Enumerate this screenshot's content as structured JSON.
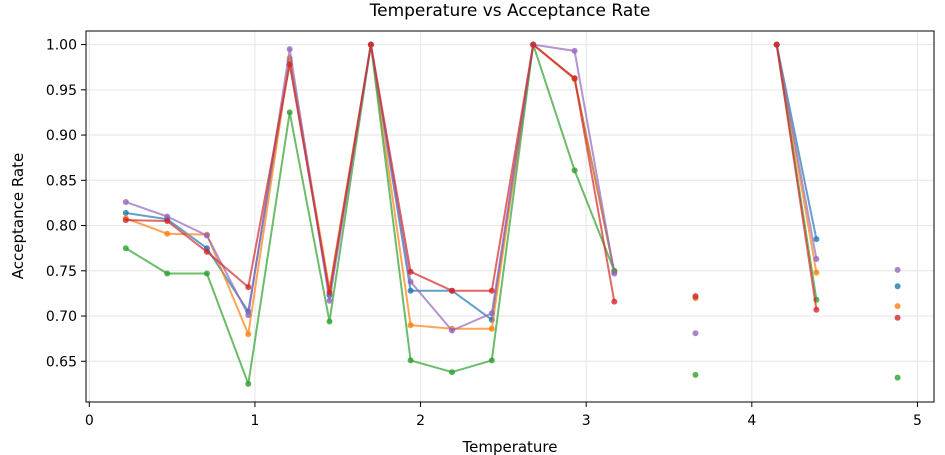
{
  "chart_data": {
    "type": "line",
    "title": "Temperature vs Acceptance Rate",
    "xlabel": "Temperature",
    "ylabel": "Acceptance Rate",
    "xlim": [
      -0.02,
      5.1
    ],
    "ylim": [
      0.605,
      1.015
    ],
    "grid": true,
    "xticks": [
      0,
      1,
      2,
      3,
      4,
      5
    ],
    "yticks": [
      0.65,
      0.7,
      0.75,
      0.8,
      0.85,
      0.9,
      0.95,
      1.0
    ],
    "xtick_labels": [
      "0",
      "1",
      "2",
      "3",
      "4",
      "5"
    ],
    "ytick_labels": [
      "0.65",
      "0.70",
      "0.75",
      "0.80",
      "0.85",
      "0.90",
      "0.95",
      "1.00"
    ],
    "series": [
      {
        "color": "#1f77b4",
        "x": [
          0.22,
          0.47,
          0.71,
          0.96,
          1.21,
          1.45,
          1.7,
          1.94,
          2.19,
          2.43,
          2.68,
          2.93,
          3.17,
          3.66,
          4.15,
          4.39,
          4.88
        ],
        "y": [
          0.814,
          0.807,
          0.775,
          0.705,
          0.982,
          0.723,
          1.0,
          0.728,
          0.728,
          0.696,
          1.0,
          0.962,
          0.749,
          0.72,
          1.0,
          0.785,
          0.733
        ]
      },
      {
        "color": "#ff7f0e",
        "x": [
          0.22,
          0.47,
          0.71,
          0.96,
          1.21,
          1.45,
          1.7,
          1.94,
          2.19,
          2.43,
          2.68,
          2.93,
          3.17,
          3.66,
          4.15,
          4.39,
          4.88
        ],
        "y": [
          0.808,
          0.791,
          0.79,
          0.68,
          0.985,
          0.73,
          1.0,
          0.69,
          0.686,
          0.686,
          1.0,
          0.962,
          0.749,
          0.72,
          1.0,
          0.748,
          0.711
        ]
      },
      {
        "color": "#2ca02c",
        "x": [
          0.22,
          0.47,
          0.71,
          0.96,
          1.21,
          1.45,
          1.7,
          1.94,
          2.19,
          2.43,
          2.68,
          2.93,
          3.17,
          3.66,
          4.15,
          4.39,
          4.88
        ],
        "y": [
          0.775,
          0.747,
          0.747,
          0.625,
          0.925,
          0.694,
          1.0,
          0.651,
          0.638,
          0.651,
          1.0,
          0.861,
          0.75,
          0.635,
          1.0,
          0.718,
          0.632
        ]
      },
      {
        "color": "#9467bd",
        "x": [
          0.22,
          0.47,
          0.71,
          0.96,
          1.21,
          1.45,
          1.7,
          1.94,
          2.19,
          2.43,
          2.68,
          2.93,
          3.17,
          3.66,
          4.15,
          4.39,
          4.88
        ],
        "y": [
          0.826,
          0.81,
          0.789,
          0.701,
          0.995,
          0.717,
          1.0,
          0.738,
          0.684,
          0.703,
          1.0,
          0.993,
          0.747,
          0.681,
          1.0,
          0.763,
          0.751
        ]
      },
      {
        "color": "#d62728",
        "x": [
          0.22,
          0.47,
          0.71,
          0.96,
          1.21,
          1.45,
          1.7,
          1.94,
          2.19,
          2.43,
          2.68,
          2.93,
          3.17,
          3.66,
          4.15,
          4.39,
          4.88
        ],
        "y": [
          0.806,
          0.805,
          0.771,
          0.732,
          0.978,
          0.726,
          1.0,
          0.749,
          0.728,
          0.728,
          1.0,
          0.963,
          0.716,
          0.722,
          1.0,
          0.707,
          0.698
        ]
      }
    ],
    "connected_segments": [
      [
        0,
        12
      ],
      [
        14,
        15
      ]
    ]
  }
}
